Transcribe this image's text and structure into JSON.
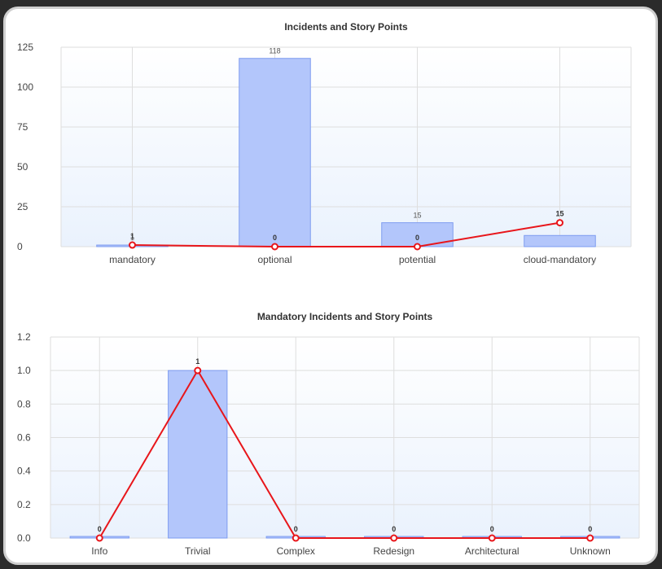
{
  "chart_data": [
    {
      "type": "bar",
      "title": "Incidents and Story Points",
      "categories": [
        "mandatory",
        "optional",
        "potential",
        "cloud-mandatory"
      ],
      "ylim": [
        0,
        125
      ],
      "yticks": [
        0,
        25,
        50,
        75,
        100,
        125
      ],
      "series": [
        {
          "kind": "bar",
          "values": [
            1,
            118,
            15,
            7
          ],
          "bar_labels": [
            "1",
            "118",
            "15",
            ""
          ]
        },
        {
          "kind": "line",
          "values": [
            1,
            0,
            0,
            15
          ],
          "point_labels": [
            "1",
            "0",
            "0",
            "15"
          ]
        }
      ],
      "grid": true
    },
    {
      "type": "bar",
      "title": "Mandatory Incidents and Story Points",
      "categories": [
        "Info",
        "Trivial",
        "Complex",
        "Redesign",
        "Architectural",
        "Unknown"
      ],
      "ylim": [
        0,
        1.2
      ],
      "yticks": [
        0.0,
        0.2,
        0.4,
        0.6,
        0.8,
        1.0,
        1.2
      ],
      "ytick_labels": [
        "0.0",
        "0.2",
        "0.4",
        "0.6",
        "0.8",
        "1.0",
        "1.2"
      ],
      "series": [
        {
          "kind": "bar",
          "values": [
            0,
            1,
            0,
            0,
            0,
            0
          ],
          "bar_labels": [
            "",
            "",
            "",
            "",
            "",
            ""
          ]
        },
        {
          "kind": "line",
          "values": [
            0,
            1,
            0,
            0,
            0,
            0
          ],
          "point_labels": [
            "0",
            "1",
            "0",
            "0",
            "0",
            "0"
          ]
        }
      ],
      "grid": true
    }
  ],
  "colors": {
    "bar_fill": "#b3c6fb",
    "bar_stroke": "#7e9cf0",
    "line": "#e8161b",
    "plot_bg_top": "#ffffff",
    "plot_bg_bottom": "#eaf2fd",
    "grid": "#dedede"
  }
}
